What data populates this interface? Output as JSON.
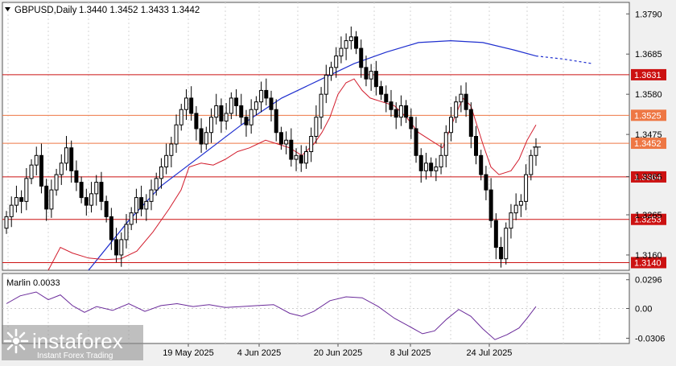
{
  "header": {
    "symbol_line": "GBPUSD,Daily",
    "ohlc": "1.3440 1.3452 1.3433 1.3442"
  },
  "indicator": {
    "label": "Marlin 0.0033",
    "axis_ticks": [
      "0.0296",
      "0.00",
      "-0.0306"
    ]
  },
  "watermark": {
    "brand": "instaforex",
    "tagline": "Instant Forex Trading"
  },
  "colors": {
    "ma_blue": "#1f2fcf",
    "ma_red": "#d21d2d",
    "level_line": "#cc1111",
    "level_orange": "#ee7744",
    "indicator_line": "#6a2a9a",
    "candle": "#000000"
  },
  "chart_data": {
    "type": "candlestick",
    "ylim": [
      1.312,
      1.382
    ],
    "y_ticks": [
      "1.3790",
      "1.3685",
      "1.3580",
      "1.3475",
      "1.3365",
      "1.3265",
      "1.3160"
    ],
    "x_ticks": [
      "19 May 2025",
      "4 Jun 2025",
      "20 Jun 2025",
      "8 Jul 2025",
      "24 Jul 2025"
    ],
    "levels": [
      {
        "label": "1.3631",
        "value": 1.3631,
        "style": "red"
      },
      {
        "label": "1.3525",
        "value": 1.3525,
        "style": "orange"
      },
      {
        "label": "1.3452",
        "value": 1.3452,
        "style": "orange"
      },
      {
        "label": "1.3364",
        "value": 1.3364,
        "style": "red"
      },
      {
        "label": "1.3253",
        "value": 1.3253,
        "style": "red"
      },
      {
        "label": "1.3140",
        "value": 1.314,
        "style": "red"
      }
    ],
    "current_price": 1.3442,
    "closes": [
      1.326,
      1.329,
      1.331,
      1.33,
      1.336,
      1.3395,
      1.342,
      1.334,
      1.328,
      1.333,
      1.337,
      1.34,
      1.344,
      1.338,
      1.335,
      1.331,
      1.329,
      1.332,
      1.335,
      1.33,
      1.326,
      1.32,
      1.316,
      1.32,
      1.324,
      1.327,
      1.331,
      1.328,
      1.33,
      1.333,
      1.336,
      1.339,
      1.342,
      1.345,
      1.35,
      1.354,
      1.357,
      1.353,
      1.349,
      1.345,
      1.348,
      1.352,
      1.355,
      1.351,
      1.353,
      1.357,
      1.355,
      1.352,
      1.35,
      1.354,
      1.356,
      1.359,
      1.357,
      1.354,
      1.348,
      1.345,
      1.346,
      1.341,
      1.342,
      1.34,
      1.343,
      1.347,
      1.352,
      1.358,
      1.363,
      1.365,
      1.368,
      1.37,
      1.372,
      1.373,
      1.37,
      1.365,
      1.362,
      1.364,
      1.36,
      1.358,
      1.356,
      1.354,
      1.352,
      1.355,
      1.352,
      1.349,
      1.342,
      1.338,
      1.34,
      1.338,
      1.339,
      1.342,
      1.348,
      1.352,
      1.356,
      1.358,
      1.354,
      1.347,
      1.342,
      1.337,
      1.333,
      1.325,
      1.318,
      1.315,
      1.323,
      1.327,
      1.329,
      1.33,
      1.337,
      1.342,
      1.3442
    ],
    "ma_blue": [
      [
        110,
        1.312
      ],
      [
        160,
        1.325
      ],
      [
        200,
        1.334
      ],
      [
        250,
        1.342
      ],
      [
        300,
        1.35
      ],
      [
        350,
        1.357
      ],
      [
        400,
        1.362
      ],
      [
        440,
        1.366
      ],
      [
        480,
        1.369
      ],
      [
        520,
        1.3715
      ],
      [
        560,
        1.372
      ],
      [
        600,
        1.3715
      ],
      [
        640,
        1.3695
      ],
      [
        666,
        1.368
      ]
    ],
    "ma_blue_projection": [
      [
        666,
        1.368
      ],
      [
        700,
        1.3672
      ],
      [
        736,
        1.366
      ]
    ],
    "ma_red": [
      [
        60,
        1.312
      ],
      [
        75,
        1.318
      ],
      [
        90,
        1.3165
      ],
      [
        110,
        1.3152
      ],
      [
        130,
        1.3148
      ],
      [
        150,
        1.315
      ],
      [
        170,
        1.317
      ],
      [
        190,
        1.322
      ],
      [
        210,
        1.328
      ],
      [
        225,
        1.333
      ],
      [
        235,
        1.339
      ],
      [
        250,
        1.34
      ],
      [
        265,
        1.3395
      ],
      [
        280,
        1.341
      ],
      [
        295,
        1.343
      ],
      [
        310,
        1.344
      ],
      [
        320,
        1.345
      ],
      [
        330,
        1.346
      ],
      [
        345,
        1.345
      ],
      [
        360,
        1.344
      ],
      [
        375,
        1.342
      ],
      [
        390,
        1.345
      ],
      [
        400,
        1.348
      ],
      [
        410,
        1.352
      ],
      [
        420,
        1.358
      ],
      [
        430,
        1.361
      ],
      [
        440,
        1.362
      ],
      [
        450,
        1.359
      ],
      [
        460,
        1.357
      ],
      [
        475,
        1.356
      ],
      [
        490,
        1.355
      ],
      [
        505,
        1.352
      ],
      [
        520,
        1.348
      ],
      [
        535,
        1.346
      ],
      [
        550,
        1.344
      ],
      [
        565,
        1.352
      ],
      [
        575,
        1.357
      ],
      [
        585,
        1.355
      ],
      [
        600,
        1.345
      ],
      [
        610,
        1.339
      ],
      [
        620,
        1.337
      ],
      [
        635,
        1.338
      ],
      [
        645,
        1.341
      ],
      [
        655,
        1.346
      ],
      [
        666,
        1.35
      ]
    ],
    "marlin": [
      [
        8,
        0.005
      ],
      [
        25,
        0.013
      ],
      [
        45,
        0.017
      ],
      [
        60,
        0.009
      ],
      [
        75,
        0.014
      ],
      [
        90,
        0.003
      ],
      [
        105,
        -0.004
      ],
      [
        120,
        0.002
      ],
      [
        140,
        -0.002
      ],
      [
        160,
        0.005
      ],
      [
        180,
        -0.003
      ],
      [
        200,
        0.003
      ],
      [
        220,
        0.005
      ],
      [
        240,
        0.002
      ],
      [
        260,
        0.004
      ],
      [
        280,
        0.001
      ],
      [
        300,
        0.002
      ],
      [
        320,
        0.003
      ],
      [
        340,
        0.004
      ],
      [
        360,
        -0.005
      ],
      [
        375,
        -0.008
      ],
      [
        390,
        -0.003
      ],
      [
        410,
        0.008
      ],
      [
        430,
        0.012
      ],
      [
        450,
        0.011
      ],
      [
        470,
        0.002
      ],
      [
        490,
        -0.01
      ],
      [
        510,
        -0.019
      ],
      [
        525,
        -0.026
      ],
      [
        540,
        -0.023
      ],
      [
        555,
        -0.011
      ],
      [
        570,
        -0.001
      ],
      [
        585,
        -0.008
      ],
      [
        600,
        -0.021
      ],
      [
        615,
        -0.032
      ],
      [
        630,
        -0.027
      ],
      [
        645,
        -0.02
      ],
      [
        655,
        -0.01
      ],
      [
        666,
        0.002
      ]
    ]
  }
}
